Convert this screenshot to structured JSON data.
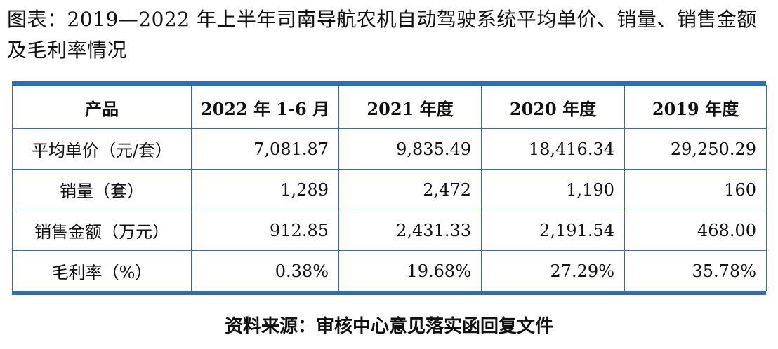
{
  "title": "图表：2019—2022 年上半年司南导航农机自动驾驶系统平均单价、销量、销售金额及毛利率情况",
  "table": {
    "headers": [
      "产品",
      "2022 年 1-6 月",
      "2021 年度",
      "2020 年度",
      "2019 年度"
    ],
    "rows": [
      {
        "label": "平均单价（元/套）",
        "values": [
          "7,081.87",
          "9,835.49",
          "18,416.34",
          "29,250.29"
        ]
      },
      {
        "label": "销量（套）",
        "values": [
          "1,289",
          "2,472",
          "1,190",
          "160"
        ]
      },
      {
        "label": "销售金额（万元）",
        "values": [
          "912.85",
          "2,431.33",
          "2,191.54",
          "468.00"
        ]
      },
      {
        "label": "毛利率（%）",
        "values": [
          "0.38%",
          "19.68%",
          "27.29%",
          "35.78%"
        ]
      }
    ]
  },
  "source": "资料来源：审核中心意见落实函回复文件"
}
